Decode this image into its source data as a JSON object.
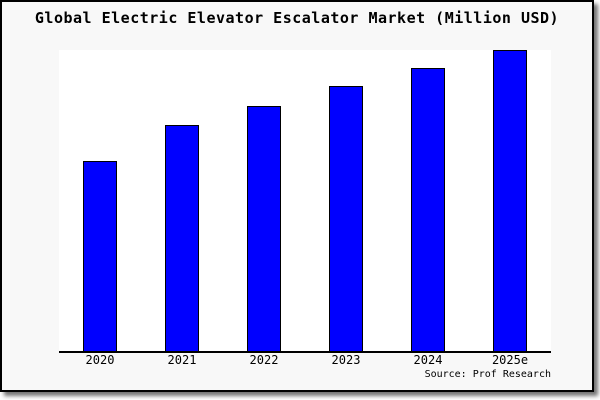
{
  "chart_data": {
    "type": "bar",
    "title": "Global Electric Elevator Escalator Market (Million USD)",
    "categories": [
      "2020",
      "2021",
      "2022",
      "2023",
      "2024",
      "2025e"
    ],
    "values": [
      63,
      75,
      81.5,
      88,
      94,
      100
    ],
    "units": "relative bar height, % of 2025e bar (no y-axis scale shown)",
    "xlabel": "",
    "ylabel": "",
    "ylim": [
      0,
      100
    ],
    "grid": false,
    "legend": "none",
    "source": "Source: Prof Research",
    "bar_color": "#0000ff",
    "bar_edge_color": "#000000"
  },
  "colors": {
    "figure_background": "#f8f8f8",
    "plot_background": "#ffffff",
    "frame_border": "#000000",
    "text": "#000000",
    "shadow": "#888888"
  }
}
